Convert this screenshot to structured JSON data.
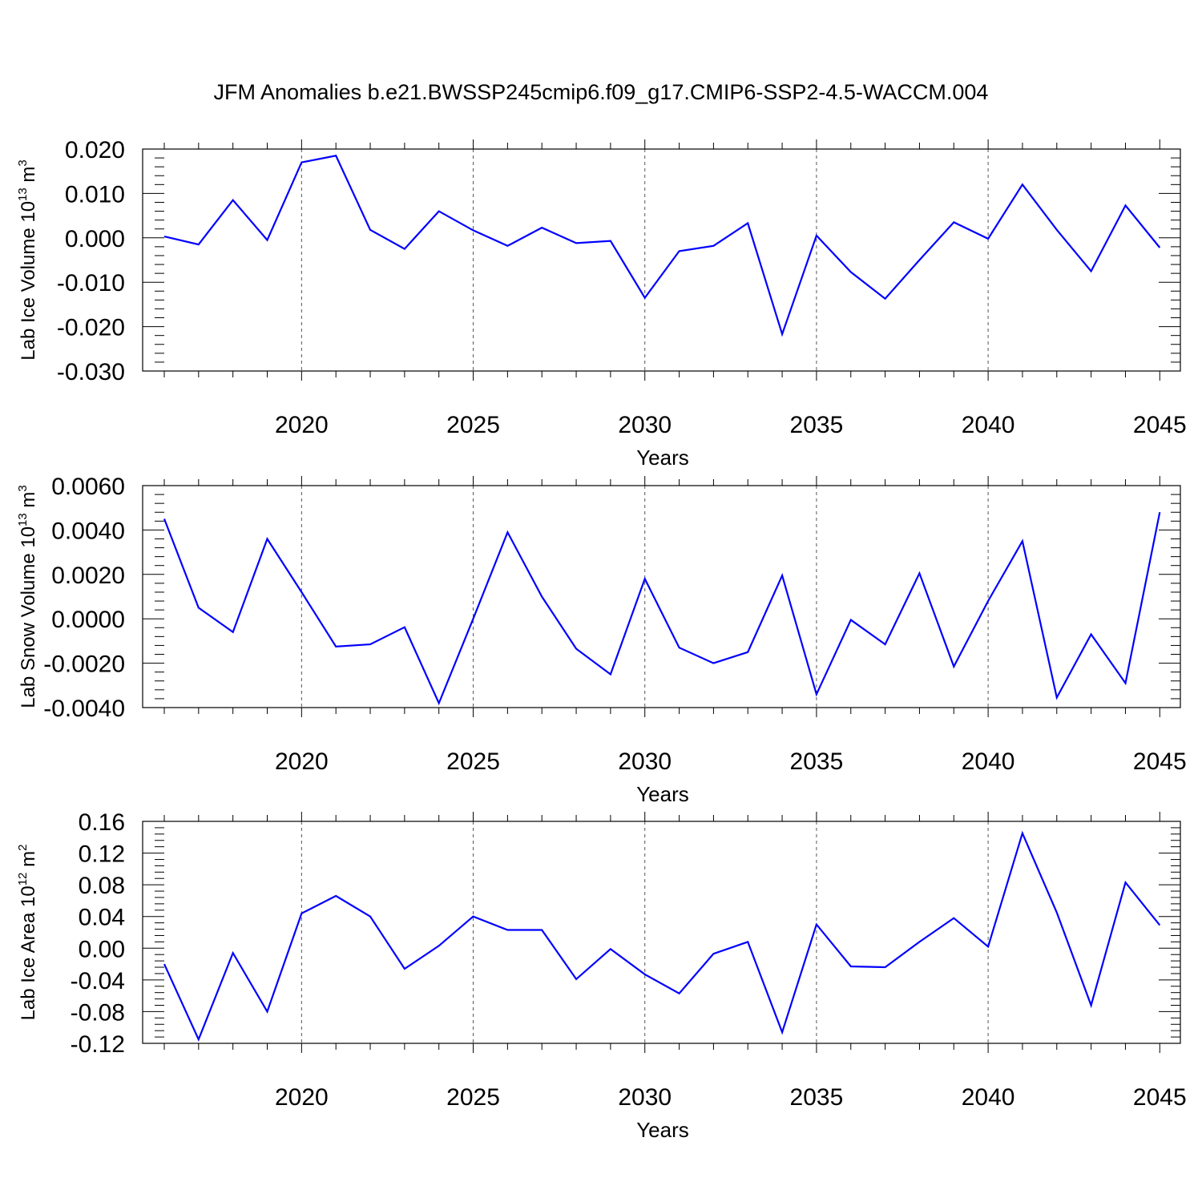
{
  "figure_title": "JFM Anomalies b.e21.BWSSP245cmip6.f09_g17.CMIP6-SSP2-4.5-WACCM.004",
  "colors": {
    "series": "#0000ff",
    "axes": "#000000",
    "grid": "#555555"
  },
  "chart_data": [
    {
      "type": "line",
      "ylabel": "Lab Ice Volume 10",
      "ylabel_exp": "13",
      "ylabel_unit": " m",
      "ylabel_unit_exp": "3",
      "xlabel": "Years",
      "xlim": [
        2016,
        2045
      ],
      "ylim": [
        -0.03,
        0.02
      ],
      "xticks": [
        2020,
        2025,
        2030,
        2035,
        2040,
        2045
      ],
      "xtick_labels": [
        "2020",
        "2025",
        "2030",
        "2035",
        "2040",
        "2045"
      ],
      "yticks": [
        0.02,
        0.01,
        0.0,
        -0.01,
        -0.02,
        -0.03
      ],
      "ytick_labels": [
        "0.020",
        "0.010",
        "0.000",
        "-0.010",
        "-0.020",
        "-0.030"
      ],
      "ymin_step": 0.002,
      "grid_x": true,
      "series": [
        {
          "name": "Lab Ice Volume",
          "x": [
            2016,
            2017,
            2018,
            2019,
            2020,
            2021,
            2022,
            2023,
            2024,
            2025,
            2026,
            2027,
            2028,
            2029,
            2030,
            2031,
            2032,
            2033,
            2034,
            2035,
            2036,
            2037,
            2038,
            2039,
            2040,
            2041,
            2042,
            2043,
            2044,
            2045
          ],
          "values": [
            0.0003,
            -0.0015,
            0.0085,
            -0.0005,
            0.017,
            0.0185,
            0.0018,
            -0.0025,
            0.006,
            0.0017,
            -0.0018,
            0.0023,
            -0.0012,
            -0.0007,
            -0.0135,
            -0.003,
            -0.0018,
            0.0033,
            -0.0217,
            0.0005,
            -0.0077,
            -0.0137,
            -0.005,
            0.0035,
            -0.0002,
            0.012,
            0.0018,
            -0.0075,
            0.0073,
            -0.0022
          ]
        }
      ]
    },
    {
      "type": "line",
      "ylabel": "Lab Snow Volume 10",
      "ylabel_exp": "13",
      "ylabel_unit": " m",
      "ylabel_unit_exp": "3",
      "xlabel": "Years",
      "xlim": [
        2016,
        2045
      ],
      "ylim": [
        -0.004,
        0.006
      ],
      "xticks": [
        2020,
        2025,
        2030,
        2035,
        2040,
        2045
      ],
      "xtick_labels": [
        "2020",
        "2025",
        "2030",
        "2035",
        "2040",
        "2045"
      ],
      "yticks": [
        0.006,
        0.004,
        0.002,
        0.0,
        -0.002,
        -0.004
      ],
      "ytick_labels": [
        "0.0060",
        "0.0040",
        "0.0020",
        "0.0000",
        "-0.0020",
        "-0.0040"
      ],
      "ymin_step": 0.0004,
      "grid_x": true,
      "series": [
        {
          "name": "Lab Snow Volume",
          "x": [
            2016,
            2017,
            2018,
            2019,
            2020,
            2021,
            2022,
            2023,
            2024,
            2025,
            2026,
            2027,
            2028,
            2029,
            2030,
            2031,
            2032,
            2033,
            2034,
            2035,
            2036,
            2037,
            2038,
            2039,
            2040,
            2041,
            2042,
            2043,
            2044,
            2045
          ],
          "values": [
            0.0045,
            0.0005,
            -0.0006,
            0.0036,
            0.0012,
            -0.00125,
            -0.00115,
            -0.00038,
            -0.0038,
            0.0,
            0.0039,
            0.001,
            -0.00135,
            -0.0025,
            0.0018,
            -0.0013,
            -0.002,
            -0.0015,
            0.00195,
            -0.0034,
            -5e-05,
            -0.00115,
            0.00205,
            -0.00215,
            0.0008,
            0.0035,
            -0.00355,
            -0.0007,
            -0.0029,
            0.0048
          ]
        }
      ]
    },
    {
      "type": "line",
      "ylabel": "Lab Ice Area 10",
      "ylabel_exp": "12",
      "ylabel_unit": " m",
      "ylabel_unit_exp": "2",
      "xlabel": "Years",
      "xlim": [
        2016,
        2045
      ],
      "ylim": [
        -0.12,
        0.16
      ],
      "xticks": [
        2020,
        2025,
        2030,
        2035,
        2040,
        2045
      ],
      "xtick_labels": [
        "2020",
        "2025",
        "2030",
        "2035",
        "2040",
        "2045"
      ],
      "yticks": [
        0.16,
        0.12,
        0.08,
        0.04,
        0.0,
        -0.04,
        -0.08,
        -0.12
      ],
      "ytick_labels": [
        "0.16",
        "0.12",
        "0.08",
        "0.04",
        "0.00",
        "-0.04",
        "-0.08",
        "-0.12"
      ],
      "ymin_step": 0.008,
      "grid_x": true,
      "series": [
        {
          "name": "Lab Ice Area",
          "x": [
            2016,
            2017,
            2018,
            2019,
            2020,
            2021,
            2022,
            2023,
            2024,
            2025,
            2026,
            2027,
            2028,
            2029,
            2030,
            2031,
            2032,
            2033,
            2034,
            2035,
            2036,
            2037,
            2038,
            2039,
            2040,
            2041,
            2042,
            2043,
            2044,
            2045
          ],
          "values": [
            -0.02,
            -0.115,
            -0.006,
            -0.08,
            0.044,
            0.066,
            0.04,
            -0.026,
            0.003,
            0.04,
            0.023,
            0.023,
            -0.039,
            -0.001,
            -0.033,
            -0.057,
            -0.007,
            0.008,
            -0.106,
            0.03,
            -0.023,
            -0.024,
            0.008,
            0.038,
            0.002,
            0.145,
            0.045,
            -0.072,
            0.083,
            0.029
          ]
        }
      ]
    }
  ]
}
